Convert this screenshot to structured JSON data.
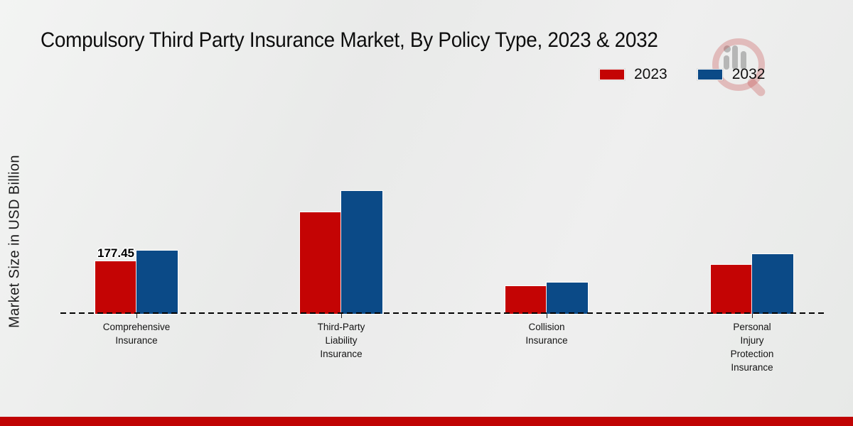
{
  "title": "Compulsory Third Party Insurance Market, By Policy Type, 2023 & 2032",
  "chart_data": {
    "type": "bar",
    "title": "Compulsory Third Party Insurance Market, By Policy Type, 2023 & 2032",
    "categories": [
      "Comprehensive Insurance",
      "Third-Party Liability Insurance",
      "Collision Insurance",
      "Personal Injury Protection Insurance"
    ],
    "categories_multiline": [
      [
        "Comprehensive",
        "Insurance"
      ],
      [
        "Third-Party",
        "Liability",
        "Insurance"
      ],
      [
        "Collision",
        "Insurance"
      ],
      [
        "Personal",
        "Injury",
        "Protection",
        "Insurance"
      ]
    ],
    "series": [
      {
        "name": "2023",
        "color": "#c40404",
        "values": [
          177.45,
          343.0,
          93.5,
          165.5
        ]
      },
      {
        "name": "2032",
        "color": "#0b4a87",
        "values": [
          213.4,
          414.8,
          105.5,
          201.4
        ]
      }
    ],
    "annotations": [
      {
        "series_index": 0,
        "category_index": 0,
        "text": "177.45"
      }
    ],
    "xlabel": "",
    "ylabel": "Market Size in USD Billion",
    "ylim": [
      0,
      450
    ],
    "grid": false,
    "legend_position": "top-right",
    "baseline_style": "dashed"
  },
  "colors": {
    "bar_2023": "#c40404",
    "bar_2032": "#0b4a87",
    "bottom_bar": "#c00404",
    "background": "#ededed",
    "watermark_red": "rgba(198,80,80,0.32)",
    "watermark_gray": "rgba(125,125,125,0.5)"
  }
}
